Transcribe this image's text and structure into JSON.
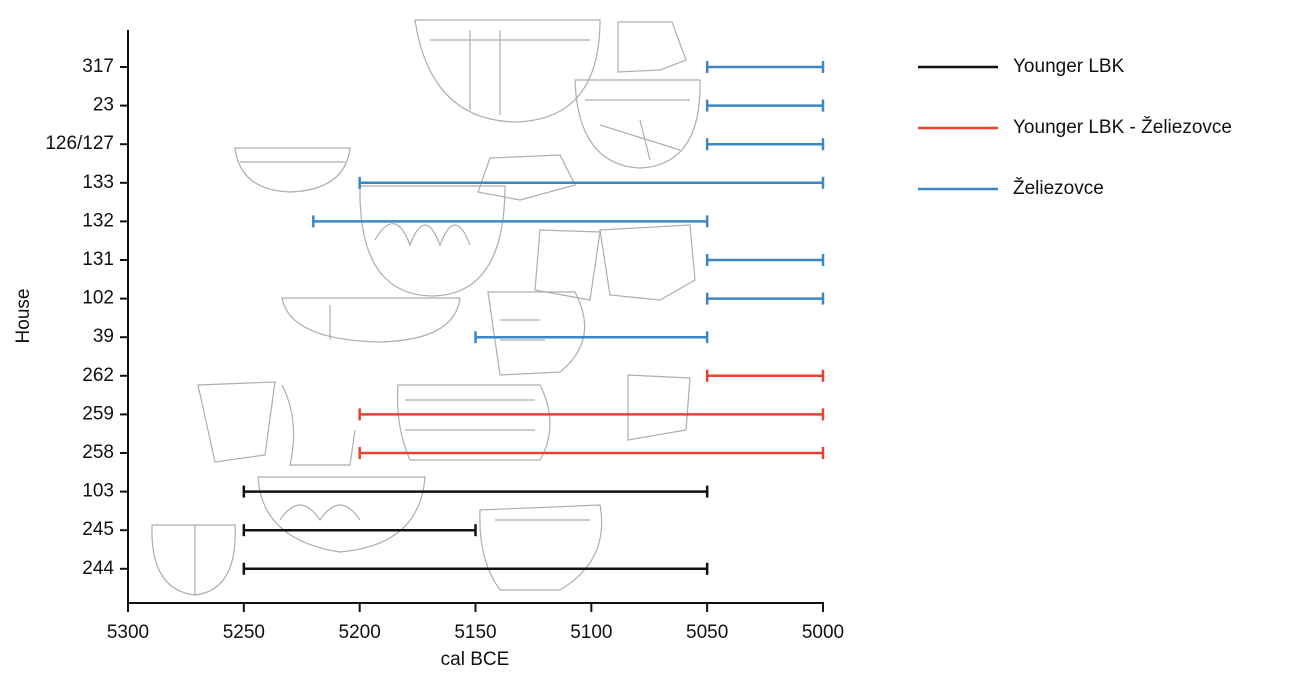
{
  "chart_data": {
    "type": "interval",
    "xlabel": "cal BCE",
    "ylabel": "House",
    "categories": [
      "317",
      "23",
      "126/127",
      "133",
      "132",
      "131",
      "102",
      "39",
      "262",
      "259",
      "258",
      "103",
      "245",
      "244"
    ],
    "xlim": [
      5300,
      5000
    ],
    "xticks": [
      5300,
      5250,
      5200,
      5150,
      5100,
      5050,
      5000
    ],
    "legend": "right",
    "series": [
      {
        "name": "Younger LBK",
        "color": "#111111",
        "start": [
          null,
          null,
          null,
          null,
          null,
          null,
          null,
          null,
          null,
          null,
          null,
          5250,
          5250,
          5250
        ],
        "end": [
          null,
          null,
          null,
          null,
          null,
          null,
          null,
          null,
          null,
          null,
          null,
          5050,
          5150,
          5050
        ]
      },
      {
        "name": "Younger LBK - Želiezovce",
        "color": "#e5432f",
        "start": [
          null,
          null,
          null,
          null,
          null,
          null,
          null,
          null,
          5050,
          5200,
          5200,
          null,
          null,
          null
        ],
        "end": [
          null,
          null,
          null,
          null,
          null,
          null,
          null,
          null,
          5000,
          5000,
          5000,
          null,
          null,
          null
        ]
      },
      {
        "name": "Želiezovce",
        "color": "#3b87c8",
        "start": [
          5050,
          5050,
          5050,
          5200,
          5220,
          5050,
          5050,
          5150,
          null,
          null,
          null,
          null,
          null,
          null
        ],
        "end": [
          5000,
          5000,
          5000,
          5000,
          5050,
          5000,
          5000,
          5050,
          null,
          null,
          null,
          null,
          null,
          null
        ]
      }
    ]
  }
}
